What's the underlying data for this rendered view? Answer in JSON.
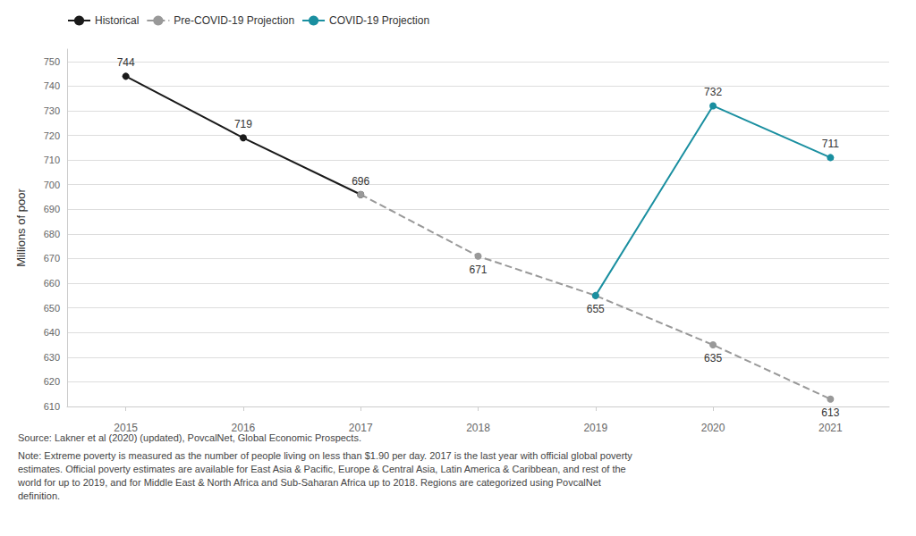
{
  "chart_data": {
    "type": "line",
    "ylabel": "Millions of poor",
    "annotations": [
      "Source: Lakner et al (2020) (updated), PovcalNet, Global Economic Prospects.",
      "Note: Extreme poverty is measured as the number of people living on less than $1.90 per day. 2017 is the last year with official global poverty\nestimates. Official poverty estimates are available for East Asia & Pacific, Europe & Central Asia, Latin America & Caribbean, and rest of the\nworld for up to 2019, and for Middle East & North Africa and Sub-Saharan Africa up to 2018. Regions are categorized using PovcalNet\ndefinition."
    ],
    "series": [
      {
        "name": "Historical",
        "color": "#1a1a1a",
        "marker": "circle",
        "line_style": "solid",
        "x": [
          2015,
          2016,
          2017
        ],
        "values": [
          744,
          719,
          696
        ]
      },
      {
        "name": "Pre-COVID-19 Projection",
        "color": "#999999",
        "marker": "circle",
        "line_style": "dashed",
        "x": [
          2017,
          2018,
          2019,
          2020,
          2021
        ],
        "values": [
          696,
          671,
          655,
          635,
          613
        ]
      },
      {
        "name": "COVID-19 Projection",
        "color": "#1a8fa0",
        "marker": "circle",
        "line_style": "solid",
        "x": [
          2019,
          2020,
          2021
        ],
        "values": [
          655,
          732,
          711
        ]
      }
    ],
    "xlim": [
      2014.5,
      2021.5
    ],
    "xticks": [
      2015,
      2016,
      2017,
      2018,
      2019,
      2020,
      2021
    ],
    "ylim": [
      610,
      755
    ],
    "yticks": [
      610,
      620,
      630,
      640,
      650,
      660,
      670,
      680,
      690,
      700,
      710,
      720,
      730,
      740,
      750
    ],
    "grid": true,
    "legend": "upper left",
    "data_labels": true
  }
}
